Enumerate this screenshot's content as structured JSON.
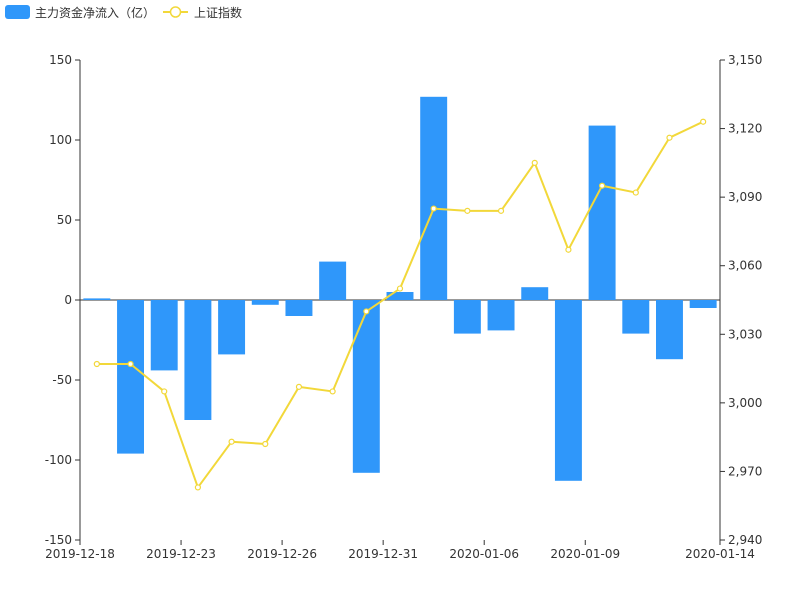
{
  "chart_data": {
    "type": "bar+line",
    "legend": [
      {
        "name": "主力资金净流入（亿）",
        "color": "#2f97fa",
        "kind": "bar"
      },
      {
        "name": "上证指数",
        "color": "#f2d83a",
        "kind": "line"
      }
    ],
    "x_labels_shown": [
      "2019-12-18",
      "2019-12-23",
      "2019-12-26",
      "2019-12-31",
      "2020-01-06",
      "2020-01-09",
      "2020-01-14"
    ],
    "categories": [
      "2019-12-18",
      "2019-12-19",
      "2019-12-20",
      "2019-12-23",
      "2019-12-24",
      "2019-12-25",
      "2019-12-26",
      "2019-12-27",
      "2019-12-30",
      "2019-12-31",
      "2020-01-02",
      "2020-01-03",
      "2020-01-06",
      "2020-01-07",
      "2020-01-08",
      "2020-01-09",
      "2020-01-10",
      "2020-01-13",
      "2020-01-14"
    ],
    "series": [
      {
        "name": "主力资金净流入（亿）",
        "type": "bar",
        "axis": "left",
        "values": [
          1,
          -96,
          -44,
          -75,
          -34,
          -3,
          -10,
          24,
          -108,
          5,
          127,
          -21,
          -19,
          8,
          -113,
          109,
          -21,
          -37,
          -5
        ]
      },
      {
        "name": "上证指数",
        "type": "line",
        "axis": "right",
        "values": [
          3017,
          3017,
          3005,
          2963,
          2983,
          2982,
          3007,
          3005,
          3040,
          3050,
          3085,
          3084,
          3084,
          3105,
          3067,
          3095,
          3092,
          3116,
          3123
        ]
      }
    ],
    "y_left": {
      "min": -150,
      "max": 150,
      "ticks": [
        -150,
        -100,
        -50,
        0,
        50,
        100,
        150
      ]
    },
    "y_right": {
      "min": 2940,
      "max": 3150,
      "ticks": [
        "2,940",
        "2,970",
        "3,000",
        "3,030",
        "3,060",
        "3,090",
        "3,120",
        "3,150"
      ],
      "tick_values": [
        2940,
        2970,
        3000,
        3030,
        3060,
        3090,
        3120,
        3150
      ]
    },
    "legend_position": "top-left",
    "grid": false
  }
}
